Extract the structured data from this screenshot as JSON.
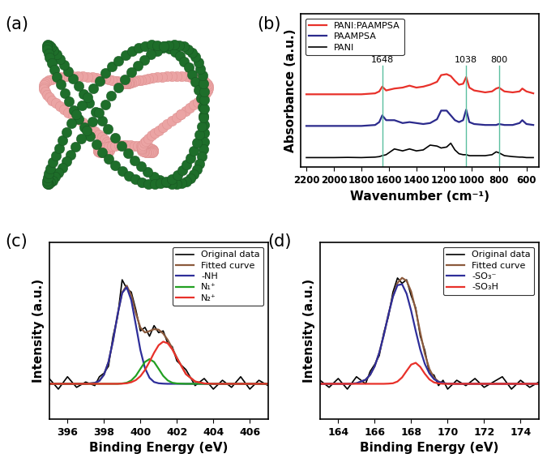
{
  "diagram": {
    "title": "(a)"
  },
  "chart_data": [
    {
      "type": "line",
      "title": "(b)",
      "x_label": "Wavenumber (cm⁻¹)",
      "y_label": "Absorbance (a.u.)",
      "x": [
        2200,
        2100,
        2000,
        1900,
        1800,
        1700,
        1670,
        1648,
        1620,
        1560,
        1500,
        1450,
        1400,
        1350,
        1300,
        1250,
        1220,
        1180,
        1150,
        1120,
        1090,
        1060,
        1038,
        1015,
        980,
        900,
        850,
        820,
        800,
        760,
        700,
        650,
        630,
        600,
        550
      ],
      "series": [
        {
          "name": "PANI:PAAMPSA",
          "color": "#e8312a",
          "values": [
            7.6,
            7.6,
            7.6,
            7.6,
            7.6,
            7.7,
            7.9,
            8.4,
            8.0,
            8.2,
            8.3,
            8.5,
            8.3,
            8.4,
            8.6,
            8.9,
            9.6,
            9.7,
            9.5,
            9.0,
            8.6,
            8.7,
            9.4,
            8.3,
            8.0,
            7.8,
            7.9,
            8.2,
            8.3,
            7.9,
            7.8,
            7.9,
            8.2,
            7.9,
            7.7
          ]
        },
        {
          "name": "PAAMPSA",
          "color": "#2b2a8c",
          "values": [
            4.3,
            4.3,
            4.3,
            4.3,
            4.3,
            4.4,
            4.7,
            5.4,
            4.9,
            4.9,
            4.6,
            4.7,
            4.6,
            4.5,
            4.6,
            5.0,
            5.9,
            5.9,
            5.4,
            4.9,
            4.7,
            4.9,
            6.0,
            4.7,
            4.5,
            4.4,
            4.4,
            4.4,
            4.5,
            4.4,
            4.4,
            4.6,
            4.9,
            4.5,
            4.4
          ]
        },
        {
          "name": "PANI",
          "color": "#000000",
          "values": [
            1.0,
            1.0,
            1.0,
            1.02,
            1.0,
            1.05,
            1.1,
            1.2,
            1.3,
            1.9,
            1.7,
            1.9,
            1.7,
            1.8,
            2.3,
            2.2,
            2.0,
            2.1,
            2.5,
            1.8,
            1.4,
            1.3,
            1.3,
            1.2,
            1.2,
            1.2,
            1.3,
            1.6,
            1.5,
            1.2,
            1.1,
            1.05,
            1.05,
            1.0,
            1.0
          ]
        }
      ],
      "xlim": [
        2240,
        510
      ],
      "xticks": [
        2200,
        2000,
        1800,
        1600,
        1400,
        1200,
        1000,
        800,
        600
      ],
      "ylim": [
        0,
        16
      ],
      "yticks": [],
      "tick_labels": "x",
      "legend": "upper left",
      "annotations": [
        {
          "x": 1648,
          "text": "1648"
        },
        {
          "x": 1038,
          "text": "1038"
        },
        {
          "x": 800,
          "text": "800"
        }
      ]
    },
    {
      "type": "line",
      "title": "(c)",
      "x_label": "Binding Energy (eV)",
      "y_label": "Intensity (a.u.)",
      "x": [
        395,
        395.5,
        396,
        396.5,
        397,
        397.5,
        397.75,
        398,
        398.25,
        398.5,
        398.75,
        399,
        399.25,
        399.5,
        399.75,
        400,
        400.25,
        400.5,
        400.75,
        401,
        401.25,
        401.5,
        401.75,
        402,
        402.5,
        403,
        403.5,
        404,
        404.5,
        405,
        405.5,
        406,
        406.5,
        407
      ],
      "series": [
        {
          "name": "Original data",
          "color": "#000000",
          "values": [
            0.23,
            0.17,
            0.24,
            0.18,
            0.21,
            0.19,
            0.24,
            0.26,
            0.3,
            0.47,
            0.58,
            0.79,
            0.74,
            0.72,
            0.62,
            0.5,
            0.52,
            0.47,
            0.53,
            0.49,
            0.5,
            0.43,
            0.41,
            0.33,
            0.28,
            0.19,
            0.23,
            0.17,
            0.22,
            0.18,
            0.24,
            0.17,
            0.22,
            0.19
          ]
        },
        {
          "name": "Fitted curve",
          "color": "#8b5a3c",
          "values": [
            0.2,
            0.2,
            0.2,
            0.2,
            0.2,
            0.205,
            0.217,
            0.251,
            0.324,
            0.445,
            0.593,
            0.718,
            0.757,
            0.702,
            0.6,
            0.519,
            0.491,
            0.499,
            0.51,
            0.507,
            0.485,
            0.449,
            0.401,
            0.348,
            0.255,
            0.213,
            0.202,
            0.2,
            0.2,
            0.2,
            0.2,
            0.2,
            0.2,
            0.2
          ]
        },
        {
          "name": "-NH",
          "color": "#2e2e9a",
          "values": [
            0.2,
            0.2,
            0.2,
            0.2,
            0.2,
            0.205,
            0.217,
            0.251,
            0.324,
            0.445,
            0.593,
            0.715,
            0.748,
            0.674,
            0.534,
            0.391,
            0.289,
            0.234,
            0.21,
            0.203,
            0.201,
            0.2,
            0.2,
            0.2,
            0.2,
            0.2,
            0.2,
            0.2,
            0.2,
            0.2,
            0.2,
            0.2,
            0.2,
            0.2
          ]
        },
        {
          "name": "N₁⁺",
          "color": "#22a022",
          "values": [
            0.2,
            0.2,
            0.2,
            0.2,
            0.2,
            0.2,
            0.2,
            0.2,
            0.2,
            0.2,
            0.2,
            0.202,
            0.206,
            0.219,
            0.245,
            0.285,
            0.324,
            0.34,
            0.324,
            0.285,
            0.245,
            0.219,
            0.206,
            0.202,
            0.2,
            0.2,
            0.2,
            0.2,
            0.2,
            0.2,
            0.2,
            0.2,
            0.2,
            0.2
          ]
        },
        {
          "name": "N₂⁺",
          "color": "#e8312a",
          "values": [
            0.2,
            0.2,
            0.2,
            0.2,
            0.2,
            0.2,
            0.2,
            0.2,
            0.2,
            0.2,
            0.2,
            0.201,
            0.203,
            0.209,
            0.221,
            0.243,
            0.278,
            0.325,
            0.376,
            0.419,
            0.439,
            0.43,
            0.395,
            0.346,
            0.255,
            0.213,
            0.202,
            0.2,
            0.2,
            0.2,
            0.2,
            0.2,
            0.2,
            0.2
          ]
        }
      ],
      "xlim": [
        395,
        407
      ],
      "xticks": [
        396,
        398,
        400,
        402,
        404,
        406
      ],
      "ylim": [
        0,
        1
      ],
      "yticks": [],
      "tick_labels": "x",
      "legend": "upper right"
    },
    {
      "type": "line",
      "title": "(d)",
      "x_label": "Binding Energy (eV)",
      "y_label": "Intensity (a.u.)",
      "x": [
        163,
        163.5,
        164,
        164.5,
        165,
        165.5,
        165.75,
        166,
        166.25,
        166.5,
        166.75,
        167,
        167.25,
        167.5,
        167.75,
        168,
        168.25,
        168.5,
        168.75,
        169,
        169.25,
        169.5,
        169.75,
        170,
        170.5,
        171,
        171.5,
        172,
        172.5,
        173,
        173.5,
        174,
        174.5,
        175
      ],
      "series": [
        {
          "name": "Original data",
          "color": "#000000",
          "values": [
            0.22,
            0.18,
            0.23,
            0.17,
            0.24,
            0.2,
            0.27,
            0.31,
            0.36,
            0.49,
            0.58,
            0.72,
            0.8,
            0.77,
            0.79,
            0.7,
            0.63,
            0.47,
            0.39,
            0.26,
            0.25,
            0.19,
            0.22,
            0.17,
            0.22,
            0.19,
            0.23,
            0.18,
            0.21,
            0.24,
            0.17,
            0.22,
            0.18,
            0.21
          ]
        },
        {
          "name": "Fitted curve",
          "color": "#8b5a3c",
          "values": [
            0.2,
            0.2,
            0.2,
            0.2,
            0.203,
            0.223,
            0.251,
            0.3,
            0.376,
            0.477,
            0.592,
            0.697,
            0.772,
            0.801,
            0.784,
            0.723,
            0.619,
            0.49,
            0.37,
            0.284,
            0.235,
            0.213,
            0.204,
            0.201,
            0.2,
            0.2,
            0.2,
            0.2,
            0.2,
            0.2,
            0.2,
            0.2,
            0.2,
            0.2
          ]
        },
        {
          "name": "-SO₃⁻",
          "color": "#2e2e9a",
          "values": [
            0.2,
            0.2,
            0.2,
            0.2,
            0.203,
            0.223,
            0.251,
            0.3,
            0.376,
            0.477,
            0.591,
            0.694,
            0.759,
            0.765,
            0.711,
            0.614,
            0.5,
            0.394,
            0.313,
            0.259,
            0.227,
            0.211,
            0.204,
            0.201,
            0.2,
            0.2,
            0.2,
            0.2,
            0.2,
            0.2,
            0.2,
            0.2,
            0.2,
            0.2
          ]
        },
        {
          "name": "-SO₃H",
          "color": "#e8312a",
          "values": [
            0.2,
            0.2,
            0.2,
            0.2,
            0.2,
            0.2,
            0.2,
            0.2,
            0.2,
            0.2,
            0.201,
            0.203,
            0.213,
            0.236,
            0.273,
            0.309,
            0.319,
            0.296,
            0.257,
            0.225,
            0.208,
            0.202,
            0.2,
            0.2,
            0.2,
            0.2,
            0.2,
            0.2,
            0.2,
            0.2,
            0.2,
            0.2,
            0.2,
            0.2
          ]
        }
      ],
      "xlim": [
        163,
        175
      ],
      "xticks": [
        164,
        166,
        168,
        170,
        172,
        174
      ],
      "ylim": [
        0,
        1
      ],
      "yticks": [],
      "tick_labels": "x",
      "legend": "upper right"
    }
  ]
}
